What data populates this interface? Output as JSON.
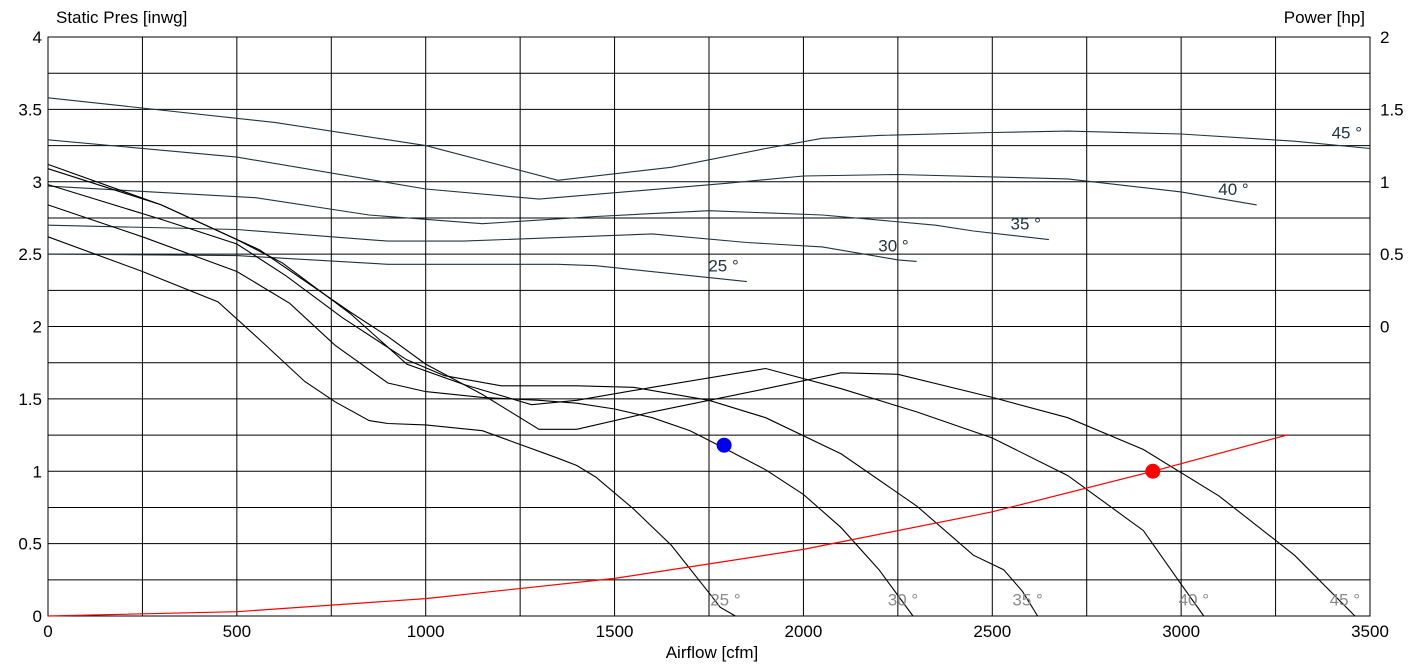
{
  "chart_data": {
    "type": "line",
    "ylabel_left": "Static Pres [inwg]",
    "ylabel_right": "Power [hp]",
    "xlabel": "Airflow [cfm]",
    "xlim": [
      0,
      3500
    ],
    "ylim": [
      0,
      4
    ],
    "x_ticks": [
      "0",
      "500",
      "1000",
      "1500",
      "2000",
      "2500",
      "3000",
      "3500"
    ],
    "y_ticks_left": [
      "0",
      "0.5",
      "1",
      "1.5",
      "2",
      "2.5",
      "3",
      "3.5",
      "4"
    ],
    "y_ticks_right": [
      "0",
      "0.5",
      "1",
      "1.5",
      "2"
    ],
    "power_axis_base_pressure": 2,
    "power_axis_pressure_per_hp": 1,
    "grid": true,
    "colors": {
      "curve": "#000000",
      "power_curve": "#1f3340",
      "system_curve": "#ff0000",
      "operating_point": "#ff0000",
      "reference_point": "#0000ee",
      "label_pressure": "#8a8a8a",
      "label_power": "#1f3340"
    },
    "pressure_curves": [
      {
        "label": "25 °",
        "points": [
          [
            0,
            2.62
          ],
          [
            250,
            2.38
          ],
          [
            450,
            2.17
          ],
          [
            560,
            1.91
          ],
          [
            680,
            1.62
          ],
          [
            760,
            1.48
          ],
          [
            850,
            1.35
          ],
          [
            900,
            1.33
          ],
          [
            1000,
            1.32
          ],
          [
            1150,
            1.28
          ],
          [
            1350,
            1.09
          ],
          [
            1400,
            1.04
          ],
          [
            1450,
            0.96
          ],
          [
            1550,
            0.74
          ],
          [
            1650,
            0.49
          ],
          [
            1750,
            0.16
          ],
          [
            1780,
            0.06
          ],
          [
            1820,
            0
          ]
        ]
      },
      {
        "label": "30 °",
        "points": [
          [
            0,
            2.84
          ],
          [
            250,
            2.62
          ],
          [
            500,
            2.38
          ],
          [
            640,
            2.16
          ],
          [
            760,
            1.87
          ],
          [
            900,
            1.61
          ],
          [
            1000,
            1.55
          ],
          [
            1150,
            1.51
          ],
          [
            1300,
            1.49
          ],
          [
            1400,
            1.47
          ],
          [
            1500,
            1.43
          ],
          [
            1600,
            1.37
          ],
          [
            1700,
            1.28
          ],
          [
            1790,
            1.16
          ],
          [
            1900,
            1.01
          ],
          [
            2000,
            0.84
          ],
          [
            2100,
            0.61
          ],
          [
            2200,
            0.32
          ],
          [
            2290,
            0
          ]
        ]
      },
      {
        "label": "35 °",
        "points": [
          [
            0,
            2.98
          ],
          [
            300,
            2.74
          ],
          [
            500,
            2.57
          ],
          [
            630,
            2.35
          ],
          [
            780,
            2.06
          ],
          [
            950,
            1.77
          ],
          [
            1050,
            1.66
          ],
          [
            1200,
            1.59
          ],
          [
            1400,
            1.59
          ],
          [
            1550,
            1.58
          ],
          [
            1750,
            1.49
          ],
          [
            1900,
            1.37
          ],
          [
            2100,
            1.12
          ],
          [
            2300,
            0.76
          ],
          [
            2450,
            0.42
          ],
          [
            2530,
            0.32
          ],
          [
            2580,
            0.17
          ],
          [
            2620,
            0
          ]
        ]
      },
      {
        "label": "40 °",
        "points": [
          [
            0,
            3.09
          ],
          [
            300,
            2.84
          ],
          [
            500,
            2.6
          ],
          [
            620,
            2.44
          ],
          [
            800,
            2.09
          ],
          [
            950,
            1.74
          ],
          [
            1100,
            1.6
          ],
          [
            1280,
            1.46
          ],
          [
            1400,
            1.49
          ],
          [
            1600,
            1.58
          ],
          [
            1900,
            1.71
          ],
          [
            2100,
            1.57
          ],
          [
            2300,
            1.41
          ],
          [
            2500,
            1.23
          ],
          [
            2700,
            0.97
          ],
          [
            2900,
            0.59
          ],
          [
            3000,
            0.22
          ],
          [
            3060,
            0
          ]
        ]
      },
      {
        "label": "45 °",
        "points": [
          [
            0,
            3.12
          ],
          [
            300,
            2.84
          ],
          [
            560,
            2.53
          ],
          [
            800,
            2.1
          ],
          [
            900,
            1.93
          ],
          [
            1000,
            1.74
          ],
          [
            1150,
            1.53
          ],
          [
            1300,
            1.29
          ],
          [
            1400,
            1.29
          ],
          [
            1600,
            1.41
          ],
          [
            1900,
            1.57
          ],
          [
            2100,
            1.68
          ],
          [
            2250,
            1.67
          ],
          [
            2500,
            1.51
          ],
          [
            2700,
            1.37
          ],
          [
            2900,
            1.15
          ],
          [
            3100,
            0.83
          ],
          [
            3300,
            0.42
          ],
          [
            3460,
            0
          ]
        ]
      }
    ],
    "power_curves": [
      {
        "label": "25 °",
        "points": [
          [
            0,
            0.5
          ],
          [
            500,
            0.49
          ],
          [
            900,
            0.43
          ],
          [
            1350,
            0.43
          ],
          [
            1450,
            0.42
          ],
          [
            1850,
            0.31
          ]
        ]
      },
      {
        "label": "30 °",
        "points": [
          [
            0,
            0.7
          ],
          [
            500,
            0.67
          ],
          [
            900,
            0.59
          ],
          [
            1100,
            0.59
          ],
          [
            1600,
            0.64
          ],
          [
            1850,
            0.58
          ],
          [
            2050,
            0.55
          ],
          [
            2250,
            0.46
          ],
          [
            2300,
            0.45
          ]
        ]
      },
      {
        "label": "35 °",
        "points": [
          [
            0,
            0.97
          ],
          [
            550,
            0.89
          ],
          [
            850,
            0.77
          ],
          [
            1150,
            0.71
          ],
          [
            1450,
            0.76
          ],
          [
            1750,
            0.8
          ],
          [
            2050,
            0.77
          ],
          [
            2350,
            0.7
          ],
          [
            2450,
            0.66
          ],
          [
            2650,
            0.6
          ]
        ]
      },
      {
        "label": "40 °",
        "points": [
          [
            0,
            1.29
          ],
          [
            500,
            1.17
          ],
          [
            1000,
            0.95
          ],
          [
            1300,
            0.88
          ],
          [
            1800,
            0.99
          ],
          [
            2000,
            1.04
          ],
          [
            2250,
            1.05
          ],
          [
            2700,
            1.02
          ],
          [
            3000,
            0.93
          ],
          [
            3200,
            0.84
          ]
        ]
      },
      {
        "label": "45 °",
        "points": [
          [
            0,
            1.58
          ],
          [
            600,
            1.41
          ],
          [
            1000,
            1.25
          ],
          [
            1350,
            1.01
          ],
          [
            1650,
            1.1
          ],
          [
            1900,
            1.23
          ],
          [
            2050,
            1.3
          ],
          [
            2200,
            1.32
          ],
          [
            2500,
            1.34
          ],
          [
            2700,
            1.35
          ],
          [
            3000,
            1.33
          ],
          [
            3300,
            1.28
          ],
          [
            3500,
            1.23
          ]
        ]
      }
    ],
    "system_curve": {
      "points": [
        [
          0,
          0
        ],
        [
          500,
          0.03
        ],
        [
          1000,
          0.12
        ],
        [
          1500,
          0.26
        ],
        [
          2000,
          0.46
        ],
        [
          2500,
          0.72
        ],
        [
          2925,
          1.0
        ],
        [
          3280,
          1.25
        ]
      ]
    },
    "operating_point": {
      "x": 2925,
      "y": 1.0
    },
    "reference_point": {
      "x": 1790,
      "y": 1.18
    }
  }
}
